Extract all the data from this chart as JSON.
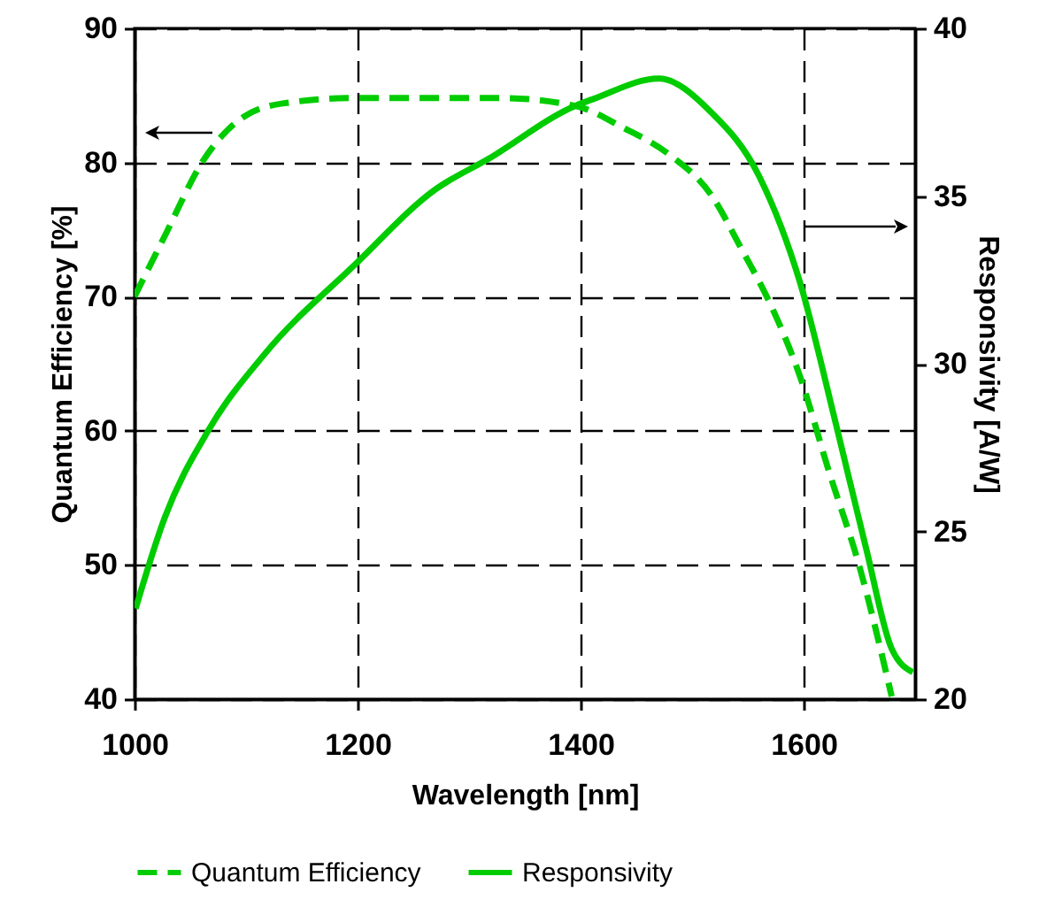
{
  "chart_data": {
    "type": "line",
    "xlabel": "Wavelength [nm]",
    "ylabel": "Quantum Efficiency [%]",
    "y2label": "Responsivity [A/W]",
    "xlim": [
      1000,
      1700
    ],
    "xticks": [
      1000,
      1200,
      1400,
      1600
    ],
    "ylim": [
      40,
      90
    ],
    "yticks": [
      40,
      50,
      60,
      70,
      80,
      90
    ],
    "y2lim": [
      20,
      40
    ],
    "y2ticks": [
      20,
      25,
      30,
      35,
      40
    ],
    "grid": true,
    "legend": "bottom",
    "series": [
      {
        "name": "Quantum Efficiency",
        "color": "#00cc00",
        "line_style": "dashed",
        "x": [
          1000,
          1027,
          1062,
          1096,
          1133,
          1196,
          1260,
          1330,
          1396,
          1438,
          1481,
          1517,
          1544,
          1571,
          1597,
          1623,
          1650,
          1679
        ],
        "values": [
          70,
          74.5,
          80.2,
          83.3,
          84.4,
          84.8,
          84.8,
          84.8,
          84.2,
          82.6,
          80.5,
          77.6,
          73.6,
          69.3,
          64,
          56.9,
          49.9,
          40.2
        ]
      },
      {
        "name": "Responsivity",
        "color": "#00cc00",
        "line_style": "solid",
        "axis": "y2",
        "x": [
          1001,
          1027,
          1066,
          1117,
          1196,
          1270,
          1317,
          1396,
          1412,
          1470,
          1517,
          1560,
          1597,
          1629,
          1656,
          1679,
          1698
        ],
        "values": [
          22.7,
          25.4,
          28.0,
          30.3,
          32.9,
          35.2,
          36.1,
          37.7,
          37.9,
          38.5,
          37.5,
          35.6,
          32.4,
          28.2,
          24.5,
          21.5,
          20.8
        ]
      }
    ]
  }
}
